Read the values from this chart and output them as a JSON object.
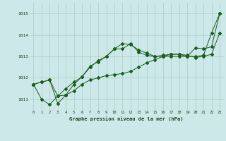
{
  "background_color": "#cce8e8",
  "grid_color": "#aacccc",
  "line_color": "#1a5c1a",
  "x_ticks": [
    0,
    1,
    2,
    3,
    4,
    5,
    6,
    7,
    8,
    9,
    10,
    11,
    12,
    13,
    14,
    15,
    16,
    17,
    18,
    19,
    20,
    21,
    22,
    23
  ],
  "ylim": [
    1010.5,
    1015.5
  ],
  "yticks": [
    1011,
    1012,
    1013,
    1014,
    1015
  ],
  "xlabel": "Graphe pression niveau de la mer (hPa)",
  "series": [
    [
      1011.7,
      1011.8,
      1011.9,
      1010.8,
      1011.2,
      1011.4,
      1011.7,
      1011.9,
      1012.0,
      1012.1,
      1012.15,
      1012.2,
      1012.3,
      1012.5,
      1012.7,
      1012.85,
      1013.0,
      1013.0,
      1013.0,
      1013.0,
      1013.0,
      1013.05,
      1014.1,
      1015.0
    ],
    [
      1011.7,
      1011.8,
      1011.9,
      1011.15,
      1011.2,
      1011.7,
      1012.05,
      1012.55,
      1012.75,
      1013.0,
      1013.35,
      1013.35,
      1013.6,
      1013.2,
      1013.05,
      1013.0,
      1013.05,
      1013.1,
      1013.1,
      1013.05,
      1012.95,
      1013.0,
      1013.1,
      1014.1
    ],
    [
      1011.7,
      1011.0,
      1010.75,
      1011.15,
      1011.5,
      1011.8,
      1012.05,
      1012.5,
      1012.8,
      1013.0,
      1013.35,
      1013.6,
      1013.55,
      1013.3,
      1013.15,
      1013.0,
      1013.0,
      1013.1,
      1013.1,
      1013.0,
      1013.4,
      1013.35,
      1013.45,
      1015.0
    ]
  ]
}
